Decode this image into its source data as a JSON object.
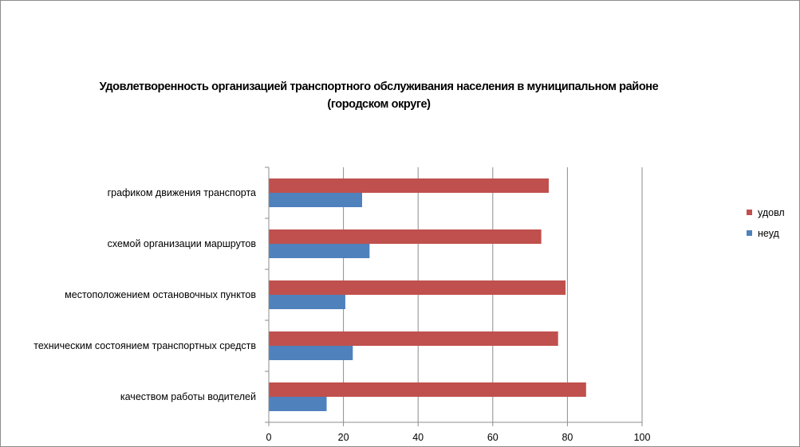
{
  "chart_data": {
    "type": "bar",
    "orientation": "horizontal",
    "title_lines": [
      "Удовлетворенность организацией транспортного обслуживания населения в муниципальном районе",
      "(городском округе)"
    ],
    "categories": [
      "графиком движения  транспорта",
      "схемой организации маршрутов",
      "местоположением  остановочных пунктов",
      "техническим  состоянием транспортных средств",
      "качеством работы водителей"
    ],
    "series": [
      {
        "name": "удовл",
        "color": "#c0504d",
        "values": [
          75,
          73,
          79.5,
          77.5,
          85
        ]
      },
      {
        "name": "неуд",
        "color": "#4f81bd",
        "values": [
          25,
          27,
          20.5,
          22.5,
          15.5
        ]
      }
    ],
    "xlim": [
      0,
      100
    ],
    "x_ticks": [
      0,
      20,
      40,
      60,
      80,
      100
    ],
    "x_tick_labels": [
      "0",
      "20",
      "40",
      "60",
      "80",
      "100"
    ],
    "grid": true,
    "legend_position": "right",
    "legend_order": [
      "удовл",
      "неуд"
    ]
  }
}
